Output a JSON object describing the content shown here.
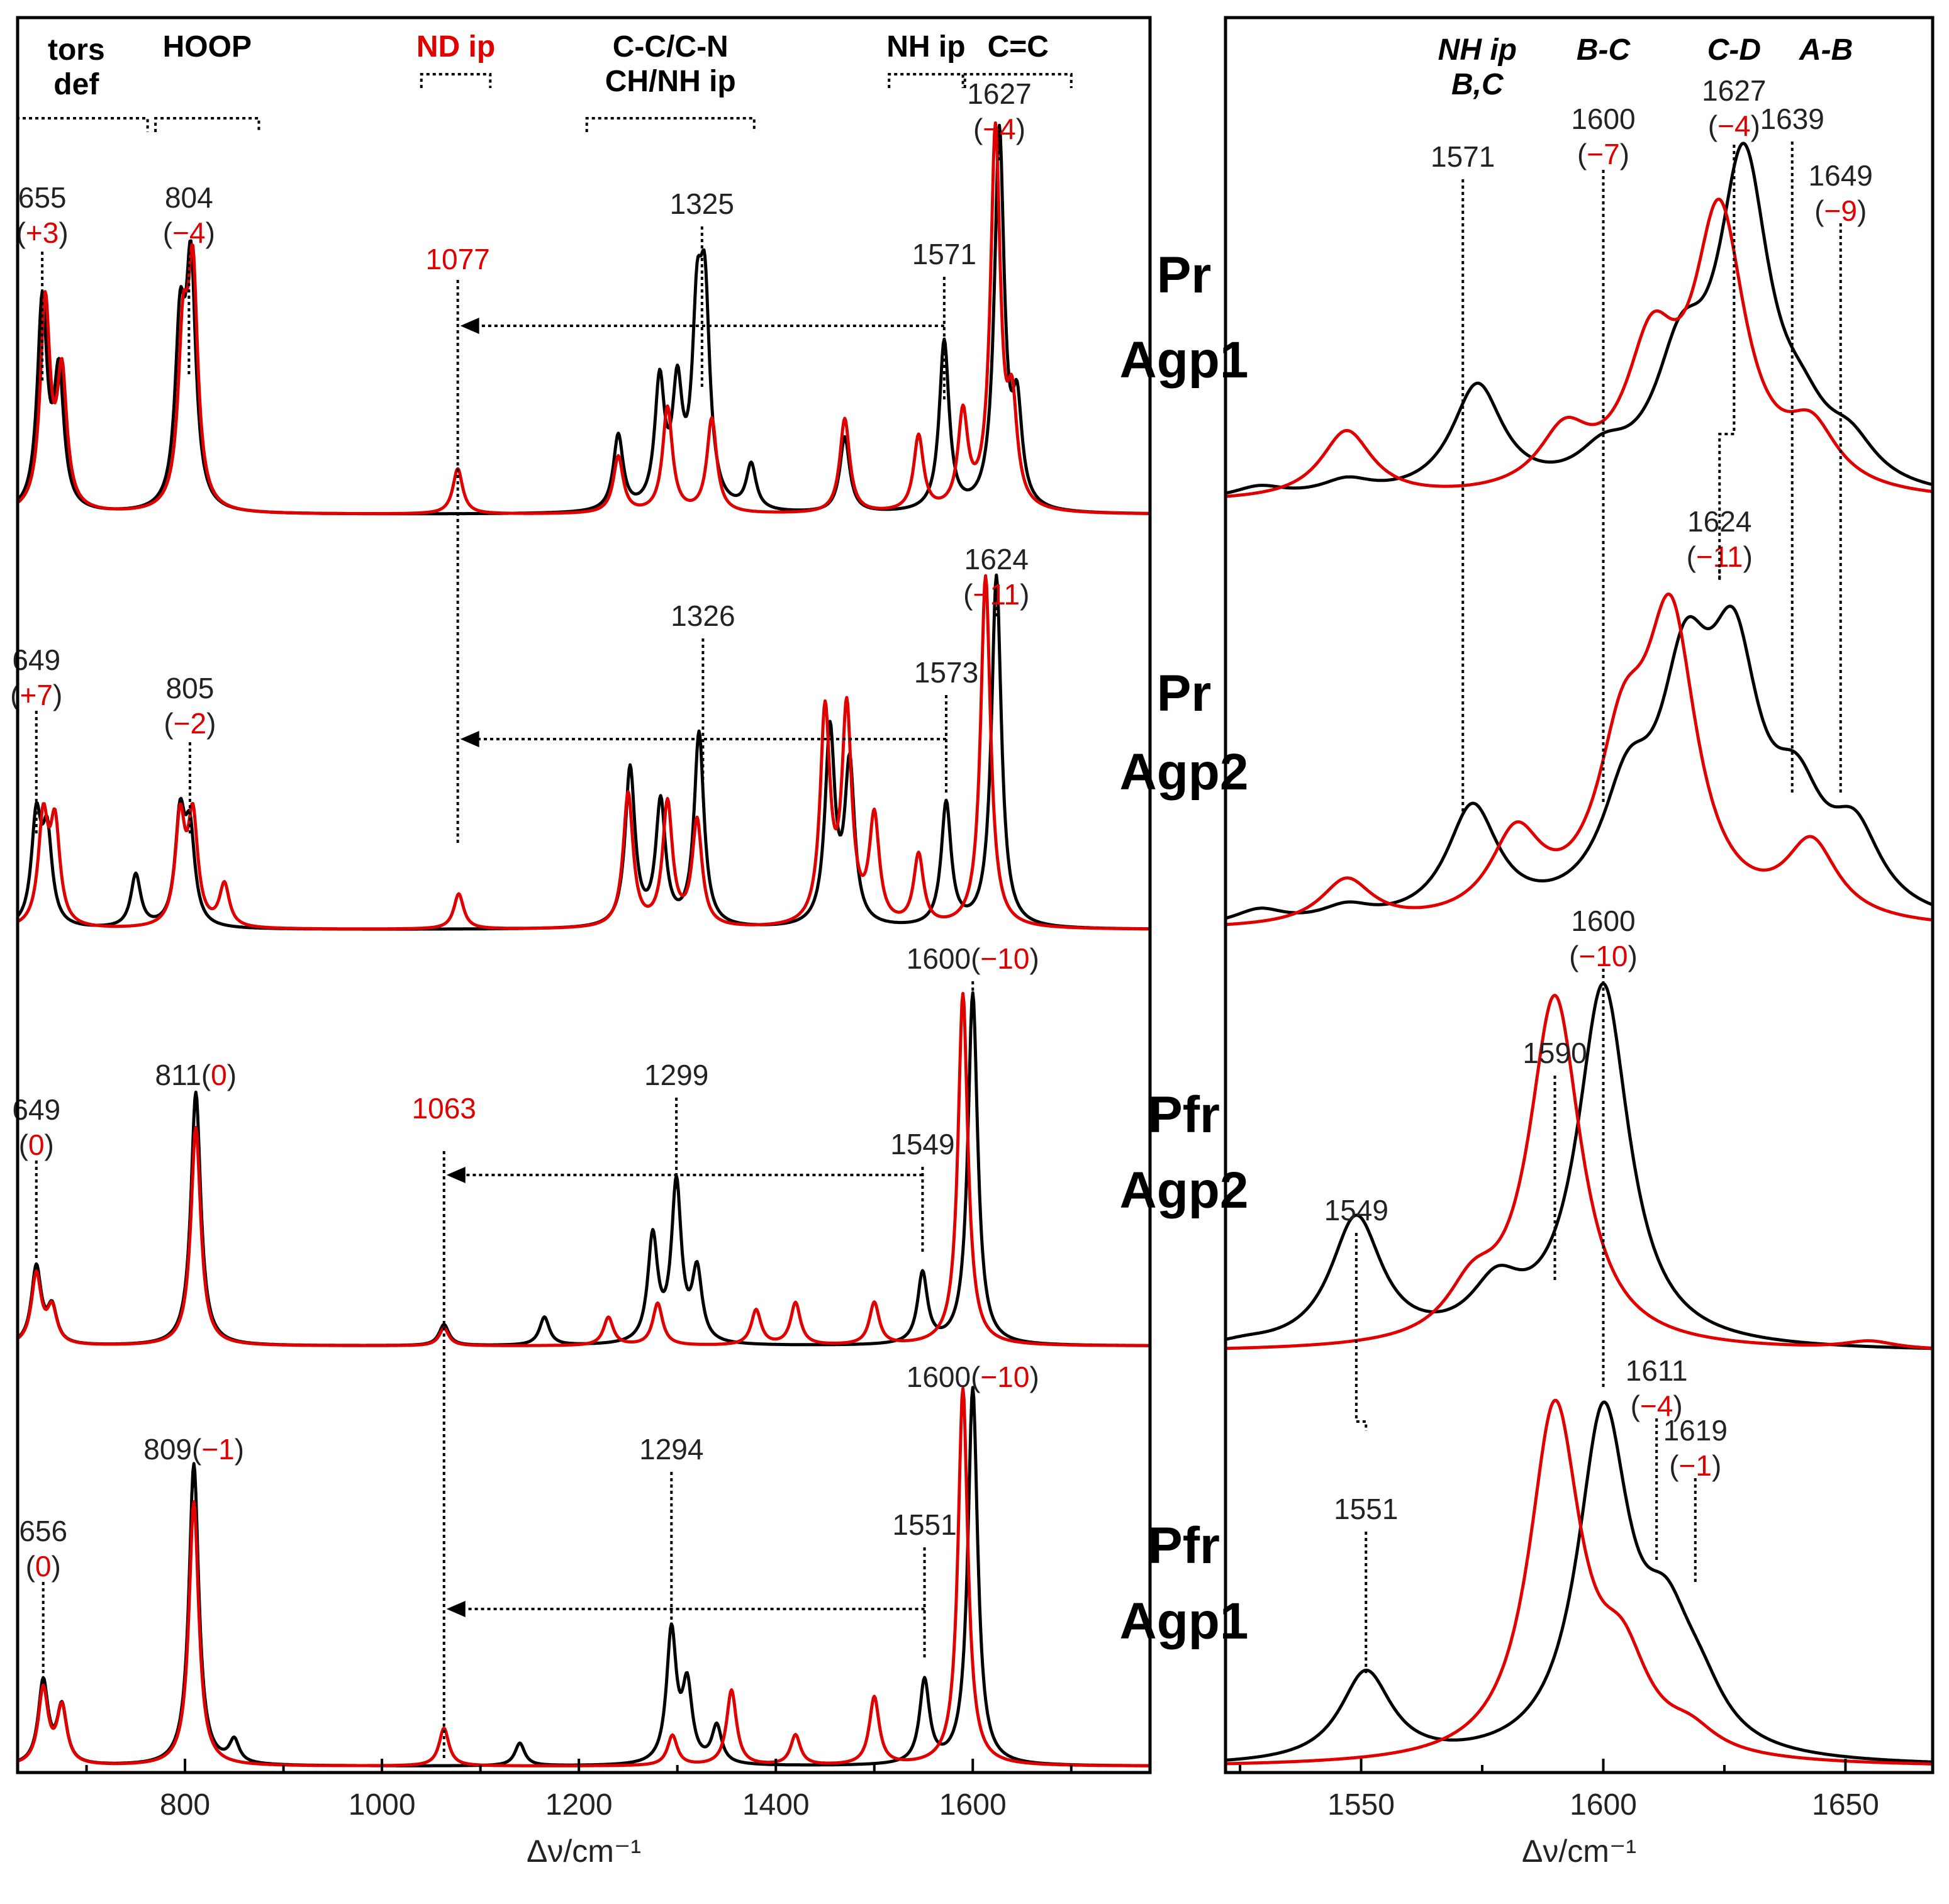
{
  "chart_data": [
    {
      "type": "line",
      "panel": "left",
      "xlabel": "Δν/cm⁻¹",
      "xlim": [
        630,
        1780
      ],
      "xticks": [
        {
          "v": 800,
          "label": "800"
        },
        {
          "v": 1000,
          "label": "1000"
        },
        {
          "v": 1200,
          "label": "1200"
        },
        {
          "v": 1400,
          "label": "1400"
        },
        {
          "v": 1600,
          "label": "1600"
        }
      ],
      "colors": {
        "protonated": "#000000",
        "deuterated": "#e00000"
      },
      "groups": [
        {
          "line1": "tors",
          "line2": "def",
          "range": [
            630,
            762
          ],
          "color": "#000000"
        },
        {
          "line1": "HOOP",
          "line2": "",
          "range": [
            770,
            875
          ],
          "color": "#000000"
        },
        {
          "line1": "ND ip",
          "line2": "",
          "range": [
            1040,
            1110
          ],
          "color": "#e00000"
        },
        {
          "line1": "C-C/C-N",
          "line2": "CH/NH ip",
          "range": [
            1208,
            1378
          ],
          "color": "#000000"
        },
        {
          "line1": "NH ip",
          "line2": "",
          "range": [
            1515,
            1590
          ],
          "color": "#000000"
        },
        {
          "line1": "C=C",
          "line2": "",
          "range": [
            1592,
            1700
          ],
          "color": "#000000"
        }
      ],
      "series": [
        {
          "panel": "Pr Agp1",
          "peaks_black": [
            [
              655,
              0.55
            ],
            [
              672,
              0.35
            ],
            [
              795,
              0.45
            ],
            [
              806,
              0.62
            ],
            [
              1240,
              0.2
            ],
            [
              1282,
              0.33
            ],
            [
              1300,
              0.3
            ],
            [
              1320,
              0.45
            ],
            [
              1328,
              0.5
            ],
            [
              1375,
              0.12
            ],
            [
              1470,
              0.2
            ],
            [
              1571,
              0.45
            ],
            [
              1627,
              1.0
            ],
            [
              1645,
              0.25
            ]
          ],
          "peaks_red": [
            [
              658,
              0.55
            ],
            [
              675,
              0.35
            ],
            [
              798,
              0.42
            ],
            [
              808,
              0.6
            ],
            [
              1077,
              0.12
            ],
            [
              1240,
              0.15
            ],
            [
              1290,
              0.28
            ],
            [
              1335,
              0.25
            ],
            [
              1470,
              0.25
            ],
            [
              1545,
              0.2
            ],
            [
              1590,
              0.25
            ],
            [
              1623,
              1.0
            ],
            [
              1640,
              0.25
            ]
          ],
          "labels": [
            {
              "x": 655,
              "black": "655",
              "red": "+3"
            },
            {
              "x": 804,
              "black": "804",
              "red": "−4"
            },
            {
              "x": 1325,
              "black": "1325",
              "red": ""
            },
            {
              "x": 1571,
              "black": "1571",
              "red": ""
            },
            {
              "x": 1627,
              "black": "1627",
              "red": "−4"
            }
          ],
          "nd_label": "1077",
          "nd_x": 1077,
          "arrow_from": 1571
        },
        {
          "panel": "Pr Agp2",
          "peaks_black": [
            [
              649,
              0.3
            ],
            [
              660,
              0.25
            ],
            [
              750,
              0.15
            ],
            [
              795,
              0.3
            ],
            [
              805,
              0.25
            ],
            [
              1252,
              0.45
            ],
            [
              1283,
              0.35
            ],
            [
              1322,
              0.55
            ],
            [
              1455,
              0.55
            ],
            [
              1475,
              0.45
            ],
            [
              1573,
              0.35
            ],
            [
              1624,
              1.0
            ]
          ],
          "peaks_red": [
            [
              656,
              0.3
            ],
            [
              668,
              0.28
            ],
            [
              795,
              0.3
            ],
            [
              808,
              0.3
            ],
            [
              840,
              0.12
            ],
            [
              1078,
              0.1
            ],
            [
              1250,
              0.38
            ],
            [
              1290,
              0.35
            ],
            [
              1320,
              0.3
            ],
            [
              1450,
              0.6
            ],
            [
              1472,
              0.6
            ],
            [
              1500,
              0.3
            ],
            [
              1545,
              0.2
            ],
            [
              1613,
              1.0
            ]
          ],
          "labels": [
            {
              "x": 649,
              "black": "649",
              "red": "+7"
            },
            {
              "x": 805,
              "black": "805",
              "red": "−2"
            },
            {
              "x": 1326,
              "black": "1326",
              "red": ""
            },
            {
              "x": 1573,
              "black": "1573",
              "red": ""
            },
            {
              "x": 1624,
              "black": "1624",
              "red": "−11"
            }
          ],
          "nd_label": "",
          "nd_x": 1077,
          "arrow_from": 1573
        },
        {
          "panel": "Pfr Agp2",
          "peaks_black": [
            [
              649,
              0.22
            ],
            [
              665,
              0.1
            ],
            [
              811,
              0.72
            ],
            [
              1063,
              0.06
            ],
            [
              1165,
              0.08
            ],
            [
              1275,
              0.3
            ],
            [
              1299,
              0.45
            ],
            [
              1320,
              0.2
            ],
            [
              1549,
              0.2
            ],
            [
              1600,
              1.0
            ]
          ],
          "peaks_red": [
            [
              649,
              0.2
            ],
            [
              665,
              0.1
            ],
            [
              811,
              0.62
            ],
            [
              1063,
              0.05
            ],
            [
              1230,
              0.08
            ],
            [
              1280,
              0.12
            ],
            [
              1380,
              0.1
            ],
            [
              1420,
              0.12
            ],
            [
              1500,
              0.12
            ],
            [
              1590,
              1.0
            ]
          ],
          "labels": [
            {
              "x": 649,
              "black": "649",
              "red": "0"
            },
            {
              "x": 811,
              "black": "811",
              "red": "0"
            },
            {
              "x": 1299,
              "black": "1299",
              "red": ""
            },
            {
              "x": 1549,
              "black": "1549",
              "red": ""
            },
            {
              "x": 1600,
              "black": "1600",
              "red": "−10"
            }
          ],
          "nd_label": "1063",
          "nd_x": 1063,
          "arrow_from": 1549
        },
        {
          "panel": "Pfr Agp1",
          "peaks_black": [
            [
              656,
              0.22
            ],
            [
              675,
              0.15
            ],
            [
              809,
              0.8
            ],
            [
              850,
              0.06
            ],
            [
              1140,
              0.06
            ],
            [
              1294,
              0.35
            ],
            [
              1310,
              0.2
            ],
            [
              1340,
              0.1
            ],
            [
              1551,
              0.22
            ],
            [
              1600,
              1.0
            ]
          ],
          "peaks_red": [
            [
              656,
              0.2
            ],
            [
              675,
              0.15
            ],
            [
              809,
              0.7
            ],
            [
              1063,
              0.1
            ],
            [
              1295,
              0.08
            ],
            [
              1355,
              0.2
            ],
            [
              1420,
              0.08
            ],
            [
              1500,
              0.18
            ],
            [
              1590,
              1.0
            ]
          ],
          "labels": [
            {
              "x": 656,
              "black": "656",
              "red": "0"
            },
            {
              "x": 809,
              "black": "809",
              "red": "−1"
            },
            {
              "x": 1294,
              "black": "1294",
              "red": ""
            },
            {
              "x": 1551,
              "black": "1551",
              "red": ""
            },
            {
              "x": 1600,
              "black": "1600",
              "red": "−10"
            }
          ],
          "nd_label": "",
          "nd_x": 1063,
          "arrow_from": 1551
        }
      ]
    },
    {
      "type": "line",
      "panel": "right",
      "xlabel": "Δν/cm⁻¹",
      "xlim": [
        1522,
        1668
      ],
      "xticks": [
        {
          "v": 1550,
          "label": "1550"
        },
        {
          "v": 1600,
          "label": "1600"
        },
        {
          "v": 1650,
          "label": "1650"
        }
      ],
      "headers": [
        {
          "x": 1574,
          "line1": "NH ip",
          "line2": "B,C"
        },
        {
          "x": 1600,
          "line1": "B-C",
          "line2": ""
        },
        {
          "x": 1627,
          "line1": "C-D",
          "line2": ""
        },
        {
          "x": 1646,
          "line1": "A-B",
          "line2": ""
        }
      ],
      "series": [
        {
          "panel": "Pr Agp1",
          "peaks_black": [
            [
              1529,
              0.03
            ],
            [
              1547,
              0.04
            ],
            [
              1574,
              0.29
            ],
            [
              1600,
              0.08
            ],
            [
              1616,
              0.3
            ],
            [
              1629,
              0.85
            ],
            [
              1641,
              0.12
            ],
            [
              1651,
              0.1
            ]
          ],
          "peaks_red": [
            [
              1547,
              0.18
            ],
            [
              1592,
              0.15
            ],
            [
              1610,
              0.35
            ],
            [
              1624,
              0.72
            ],
            [
              1643,
              0.15
            ]
          ],
          "labels": [
            {
              "x": 1571,
              "black": "1571",
              "red": ""
            },
            {
              "x": 1600,
              "black": "1600",
              "red": "−7"
            },
            {
              "x": 1627,
              "black": "1627",
              "red": "−4"
            },
            {
              "x": 1639,
              "black": "1639",
              "red": ""
            },
            {
              "x": 1649,
              "black": "1649",
              "red": "−9"
            }
          ]
        },
        {
          "panel": "Pr Agp2",
          "peaks_black": [
            [
              1529,
              0.04
            ],
            [
              1547,
              0.04
            ],
            [
              1573,
              0.3
            ],
            [
              1605,
              0.28
            ],
            [
              1617,
              0.55
            ],
            [
              1627,
              0.6
            ],
            [
              1640,
              0.25
            ],
            [
              1652,
              0.2
            ]
          ],
          "peaks_red": [
            [
              1547,
              0.12
            ],
            [
              1582,
              0.22
            ],
            [
              1604,
              0.4
            ],
            [
              1614,
              0.75
            ],
            [
              1643,
              0.2
            ]
          ],
          "labels": [
            {
              "x": 1624,
              "black": "1624",
              "red": "−11"
            }
          ]
        },
        {
          "panel": "Pfr Agp2",
          "peaks_black": [
            [
              1526,
              0.01
            ],
            [
              1549,
              0.33
            ],
            [
              1578,
              0.13
            ],
            [
              1600,
              0.93
            ]
          ],
          "peaks_red": [
            [
              1573,
              0.12
            ],
            [
              1590,
              0.9
            ],
            [
              1655,
              0.02
            ]
          ],
          "labels": [
            {
              "x": 1549,
              "black": "1549",
              "red": ""
            },
            {
              "x": 1590,
              "black": "1590",
              "red": ""
            },
            {
              "x": 1600,
              "black": "1600",
              "red": "−10"
            }
          ]
        },
        {
          "panel": "Pfr Agp1",
          "peaks_black": [
            [
              1551,
              0.22
            ],
            [
              1600,
              0.83
            ],
            [
              1613,
              0.25
            ],
            [
              1620,
              0.1
            ]
          ],
          "peaks_red": [
            [
              1590,
              0.86
            ],
            [
              1604,
              0.2
            ],
            [
              1618,
              0.05
            ]
          ],
          "labels": [
            {
              "x": 1551,
              "black": "1551",
              "red": ""
            },
            {
              "x": 1611,
              "black": "1611",
              "red": "−4"
            },
            {
              "x": 1619,
              "black": "1619",
              "red": "−1"
            }
          ]
        }
      ]
    }
  ],
  "panel_titles": [
    {
      "line1": "Pr",
      "line2": "Agp1"
    },
    {
      "line1": "Pr",
      "line2": "Agp2"
    },
    {
      "line1": "Pfr",
      "line2": "Agp2"
    },
    {
      "line1": "Pfr",
      "line2": "Agp1"
    }
  ]
}
